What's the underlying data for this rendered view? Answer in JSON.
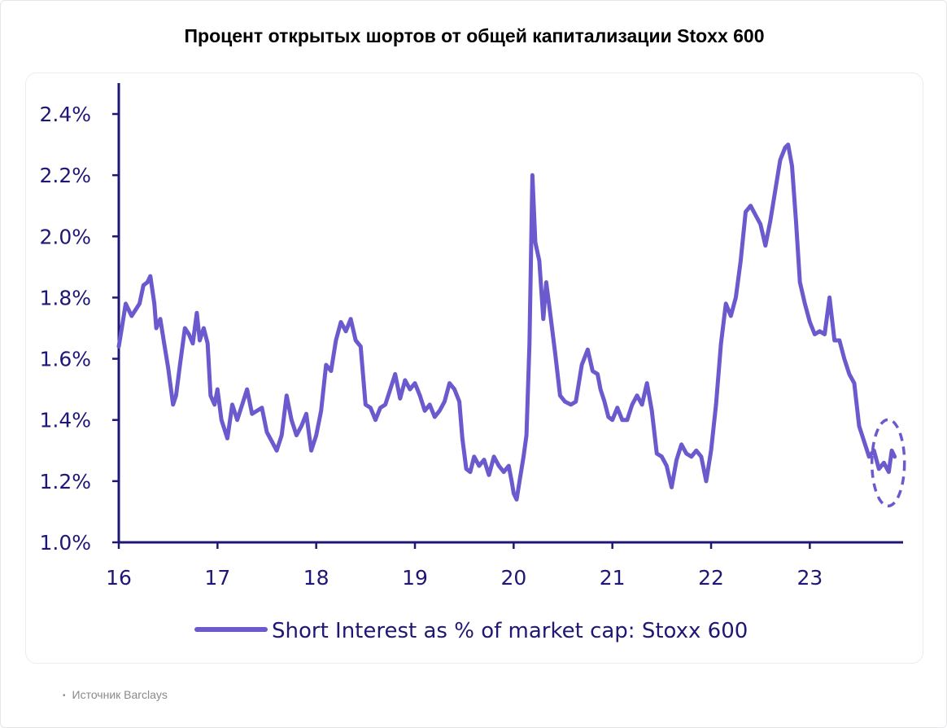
{
  "title": "Процент открытых шортов от общей капитализации Stoxx 600",
  "source": "Источник Barclays",
  "colors": {
    "line": "#6a5acd",
    "axis": "#1f1775",
    "text": "#1f1775"
  },
  "chart_data": {
    "type": "line",
    "title": "Процент открытых шортов от общей капитализации Stoxx 600",
    "xlabel": "",
    "ylabel": "",
    "xlim": [
      2016,
      2023.92
    ],
    "ylim": [
      1.0,
      2.45
    ],
    "x_ticks": [
      {
        "value": 2016,
        "label": "16"
      },
      {
        "value": 2017,
        "label": "17"
      },
      {
        "value": 2018,
        "label": "18"
      },
      {
        "value": 2019,
        "label": "19"
      },
      {
        "value": 2020,
        "label": "20"
      },
      {
        "value": 2021,
        "label": "21"
      },
      {
        "value": 2022,
        "label": "22"
      },
      {
        "value": 2023,
        "label": "23"
      }
    ],
    "y_ticks": [
      {
        "value": 1.0,
        "label": "1.0%"
      },
      {
        "value": 1.2,
        "label": "1.2%"
      },
      {
        "value": 1.4,
        "label": "1.4%"
      },
      {
        "value": 1.6,
        "label": "1.6%"
      },
      {
        "value": 1.8,
        "label": "1.8%"
      },
      {
        "value": 2.0,
        "label": "2.0%"
      },
      {
        "value": 2.2,
        "label": "2.2%"
      },
      {
        "value": 2.4,
        "label": "2.4%"
      }
    ],
    "grid": false,
    "legend": "bottom",
    "annotation": "dashed ellipse highlighting the latest values",
    "series": [
      {
        "name": "Short Interest as % of market cap: Stoxx 600",
        "color": "#6a5acd",
        "points": [
          [
            2016.0,
            1.64
          ],
          [
            2016.04,
            1.72
          ],
          [
            2016.07,
            1.78
          ],
          [
            2016.1,
            1.76
          ],
          [
            2016.13,
            1.74
          ],
          [
            2016.17,
            1.76
          ],
          [
            2016.21,
            1.78
          ],
          [
            2016.25,
            1.84
          ],
          [
            2016.29,
            1.85
          ],
          [
            2016.32,
            1.87
          ],
          [
            2016.36,
            1.78
          ],
          [
            2016.38,
            1.7
          ],
          [
            2016.42,
            1.73
          ],
          [
            2016.46,
            1.65
          ],
          [
            2016.5,
            1.57
          ],
          [
            2016.55,
            1.45
          ],
          [
            2016.58,
            1.48
          ],
          [
            2016.62,
            1.58
          ],
          [
            2016.67,
            1.7
          ],
          [
            2016.71,
            1.68
          ],
          [
            2016.75,
            1.65
          ],
          [
            2016.79,
            1.75
          ],
          [
            2016.82,
            1.66
          ],
          [
            2016.86,
            1.7
          ],
          [
            2016.9,
            1.65
          ],
          [
            2016.93,
            1.48
          ],
          [
            2016.97,
            1.45
          ],
          [
            2017.0,
            1.5
          ],
          [
            2017.04,
            1.4
          ],
          [
            2017.1,
            1.34
          ],
          [
            2017.15,
            1.45
          ],
          [
            2017.2,
            1.4
          ],
          [
            2017.25,
            1.45
          ],
          [
            2017.3,
            1.5
          ],
          [
            2017.35,
            1.42
          ],
          [
            2017.45,
            1.44
          ],
          [
            2017.5,
            1.36
          ],
          [
            2017.55,
            1.33
          ],
          [
            2017.6,
            1.3
          ],
          [
            2017.65,
            1.35
          ],
          [
            2017.7,
            1.48
          ],
          [
            2017.75,
            1.4
          ],
          [
            2017.8,
            1.35
          ],
          [
            2017.85,
            1.38
          ],
          [
            2017.9,
            1.42
          ],
          [
            2017.95,
            1.3
          ],
          [
            2018.0,
            1.35
          ],
          [
            2018.05,
            1.43
          ],
          [
            2018.1,
            1.58
          ],
          [
            2018.15,
            1.56
          ],
          [
            2018.2,
            1.66
          ],
          [
            2018.25,
            1.72
          ],
          [
            2018.3,
            1.69
          ],
          [
            2018.35,
            1.73
          ],
          [
            2018.4,
            1.66
          ],
          [
            2018.45,
            1.64
          ],
          [
            2018.5,
            1.45
          ],
          [
            2018.55,
            1.44
          ],
          [
            2018.6,
            1.4
          ],
          [
            2018.65,
            1.44
          ],
          [
            2018.7,
            1.45
          ],
          [
            2018.75,
            1.5
          ],
          [
            2018.8,
            1.55
          ],
          [
            2018.85,
            1.47
          ],
          [
            2018.9,
            1.53
          ],
          [
            2018.95,
            1.5
          ],
          [
            2019.0,
            1.52
          ],
          [
            2019.05,
            1.48
          ],
          [
            2019.1,
            1.43
          ],
          [
            2019.15,
            1.45
          ],
          [
            2019.2,
            1.41
          ],
          [
            2019.25,
            1.43
          ],
          [
            2019.3,
            1.46
          ],
          [
            2019.35,
            1.52
          ],
          [
            2019.4,
            1.5
          ],
          [
            2019.45,
            1.46
          ],
          [
            2019.48,
            1.34
          ],
          [
            2019.52,
            1.24
          ],
          [
            2019.56,
            1.23
          ],
          [
            2019.6,
            1.28
          ],
          [
            2019.65,
            1.25
          ],
          [
            2019.7,
            1.27
          ],
          [
            2019.75,
            1.22
          ],
          [
            2019.8,
            1.28
          ],
          [
            2019.85,
            1.25
          ],
          [
            2019.9,
            1.23
          ],
          [
            2019.95,
            1.25
          ],
          [
            2019.98,
            1.2
          ],
          [
            2020.0,
            1.16
          ],
          [
            2020.03,
            1.14
          ],
          [
            2020.06,
            1.2
          ],
          [
            2020.1,
            1.28
          ],
          [
            2020.13,
            1.35
          ],
          [
            2020.16,
            1.65
          ],
          [
            2020.19,
            2.2
          ],
          [
            2020.22,
            1.98
          ],
          [
            2020.26,
            1.92
          ],
          [
            2020.3,
            1.73
          ],
          [
            2020.33,
            1.85
          ],
          [
            2020.37,
            1.75
          ],
          [
            2020.42,
            1.62
          ],
          [
            2020.47,
            1.48
          ],
          [
            2020.52,
            1.46
          ],
          [
            2020.58,
            1.45
          ],
          [
            2020.63,
            1.46
          ],
          [
            2020.69,
            1.58
          ],
          [
            2020.75,
            1.63
          ],
          [
            2020.8,
            1.56
          ],
          [
            2020.85,
            1.55
          ],
          [
            2020.88,
            1.5
          ],
          [
            2020.92,
            1.46
          ],
          [
            2020.96,
            1.41
          ],
          [
            2021.0,
            1.4
          ],
          [
            2021.05,
            1.44
          ],
          [
            2021.1,
            1.4
          ],
          [
            2021.15,
            1.4
          ],
          [
            2021.2,
            1.45
          ],
          [
            2021.25,
            1.48
          ],
          [
            2021.3,
            1.45
          ],
          [
            2021.35,
            1.52
          ],
          [
            2021.4,
            1.43
          ],
          [
            2021.45,
            1.29
          ],
          [
            2021.5,
            1.28
          ],
          [
            2021.55,
            1.25
          ],
          [
            2021.6,
            1.18
          ],
          [
            2021.65,
            1.27
          ],
          [
            2021.7,
            1.32
          ],
          [
            2021.75,
            1.29
          ],
          [
            2021.8,
            1.28
          ],
          [
            2021.85,
            1.3
          ],
          [
            2021.9,
            1.28
          ],
          [
            2021.95,
            1.2
          ],
          [
            2022.0,
            1.3
          ],
          [
            2022.05,
            1.45
          ],
          [
            2022.1,
            1.65
          ],
          [
            2022.15,
            1.78
          ],
          [
            2022.2,
            1.74
          ],
          [
            2022.25,
            1.8
          ],
          [
            2022.3,
            1.92
          ],
          [
            2022.35,
            2.08
          ],
          [
            2022.4,
            2.1
          ],
          [
            2022.45,
            2.07
          ],
          [
            2022.5,
            2.04
          ],
          [
            2022.55,
            1.97
          ],
          [
            2022.6,
            2.05
          ],
          [
            2022.65,
            2.15
          ],
          [
            2022.7,
            2.25
          ],
          [
            2022.75,
            2.29
          ],
          [
            2022.78,
            2.3
          ],
          [
            2022.82,
            2.23
          ],
          [
            2022.86,
            2.05
          ],
          [
            2022.9,
            1.85
          ],
          [
            2022.95,
            1.78
          ],
          [
            2023.0,
            1.72
          ],
          [
            2023.05,
            1.68
          ],
          [
            2023.1,
            1.69
          ],
          [
            2023.15,
            1.68
          ],
          [
            2023.2,
            1.8
          ],
          [
            2023.25,
            1.66
          ],
          [
            2023.3,
            1.66
          ],
          [
            2023.35,
            1.6
          ],
          [
            2023.4,
            1.55
          ],
          [
            2023.45,
            1.52
          ],
          [
            2023.5,
            1.38
          ],
          [
            2023.55,
            1.33
          ],
          [
            2023.6,
            1.28
          ],
          [
            2023.65,
            1.3
          ],
          [
            2023.7,
            1.24
          ],
          [
            2023.75,
            1.26
          ],
          [
            2023.8,
            1.23
          ],
          [
            2023.83,
            1.3
          ],
          [
            2023.86,
            1.28
          ]
        ]
      }
    ]
  }
}
